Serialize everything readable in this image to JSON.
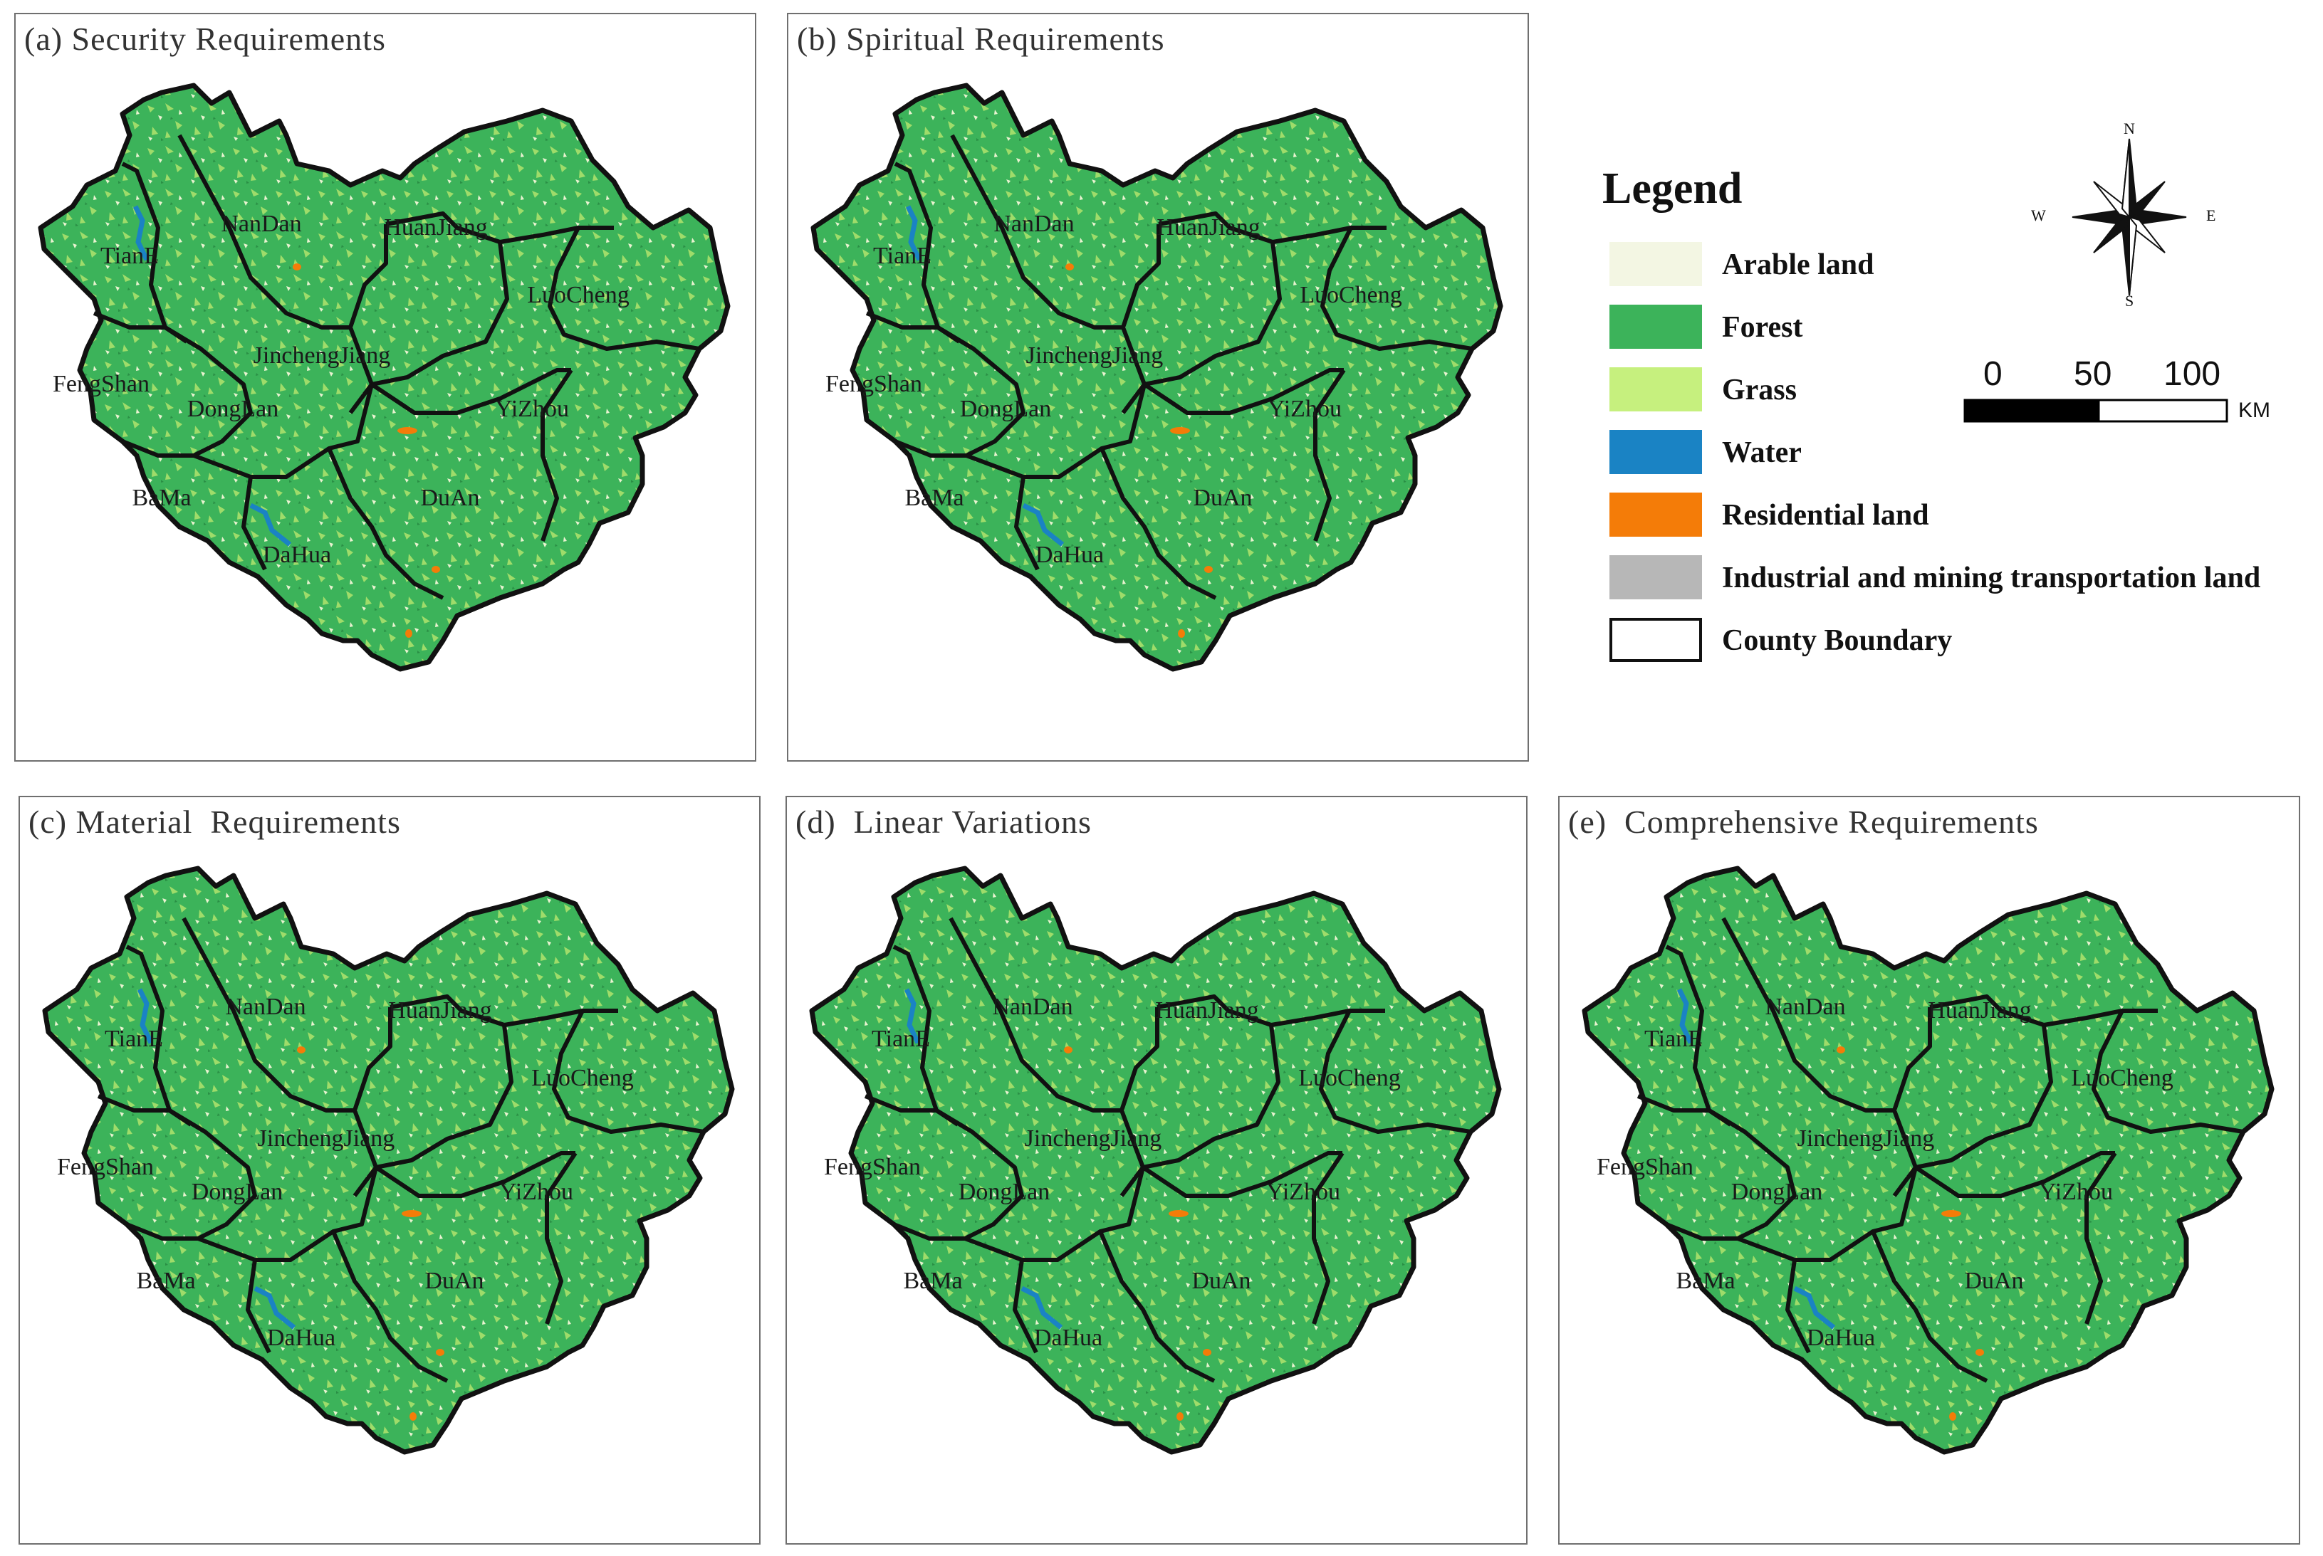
{
  "panels": [
    {
      "title": "(a) Security Requirements"
    },
    {
      "title": "(b) Spiritual Requirements"
    },
    {
      "title": "(c) Material  Requirements"
    },
    {
      "title": "(d)  Linear Variations"
    },
    {
      "title": "(e)  Comprehensive Requirements"
    }
  ],
  "counties": [
    {
      "name": "TianE"
    },
    {
      "name": "NanDan"
    },
    {
      "name": "HuanJiang"
    },
    {
      "name": "LuoCheng"
    },
    {
      "name": "JinchengJiang"
    },
    {
      "name": "FengShan"
    },
    {
      "name": "DongLan"
    },
    {
      "name": "YiZhou"
    },
    {
      "name": "BaMa"
    },
    {
      "name": "DuAn"
    },
    {
      "name": "DaHua"
    }
  ],
  "legend": {
    "title": "Legend",
    "items": [
      {
        "label": "Arable land",
        "color": "#f3f6e3"
      },
      {
        "label": "Forest",
        "color": "#3cb35a"
      },
      {
        "label": "Grass",
        "color": "#c6f07e"
      },
      {
        "label": "Water",
        "color": "#1a83c4"
      },
      {
        "label": "Residential land",
        "color": "#f47c08"
      },
      {
        "label": "Industrial and mining transportation land",
        "color": "#b7b7b7"
      },
      {
        "label": "County Boundary",
        "color": "#ffffff"
      }
    ]
  },
  "compass": {
    "n": "N",
    "s": "S",
    "e": "E",
    "w": "W"
  },
  "scale_bar": {
    "ticks": [
      "0",
      "50",
      "100"
    ],
    "unit": "KM"
  }
}
